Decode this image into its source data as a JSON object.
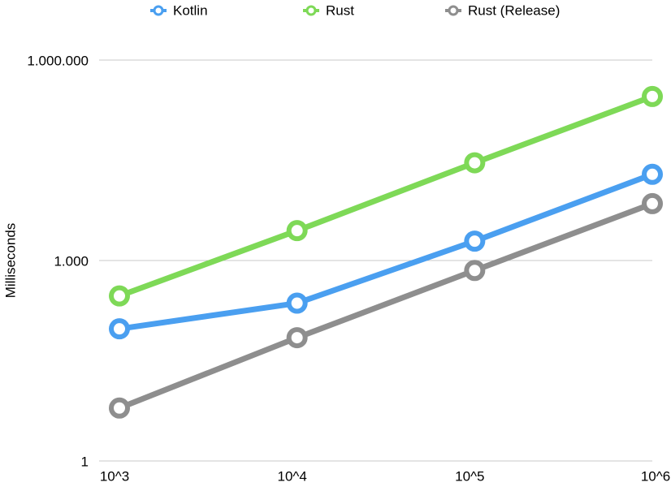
{
  "chart_data": {
    "type": "line",
    "y_label": "Milliseconds",
    "categories": [
      "10^3",
      "10^4",
      "10^5",
      "10^6"
    ],
    "series": [
      {
        "name": "Kotlin",
        "color": "#4a9ff0",
        "values": [
          95,
          230,
          1950,
          19500
        ]
      },
      {
        "name": "Rust",
        "color": "#7ed957",
        "values": [
          295,
          2800,
          29000,
          285000
        ]
      },
      {
        "name": "Rust (Release)",
        "color": "#8e8e8e",
        "values": [
          6.2,
          70,
          710,
          7100
        ]
      }
    ],
    "log_scale": true,
    "ylim": [
      1,
      1000000
    ],
    "yticks": [
      1,
      {
        "value": 1000,
        "label": "1.000"
      },
      {
        "value": 1000000,
        "label": "1.000.000"
      }
    ],
    "grid": true,
    "legend": "top"
  }
}
